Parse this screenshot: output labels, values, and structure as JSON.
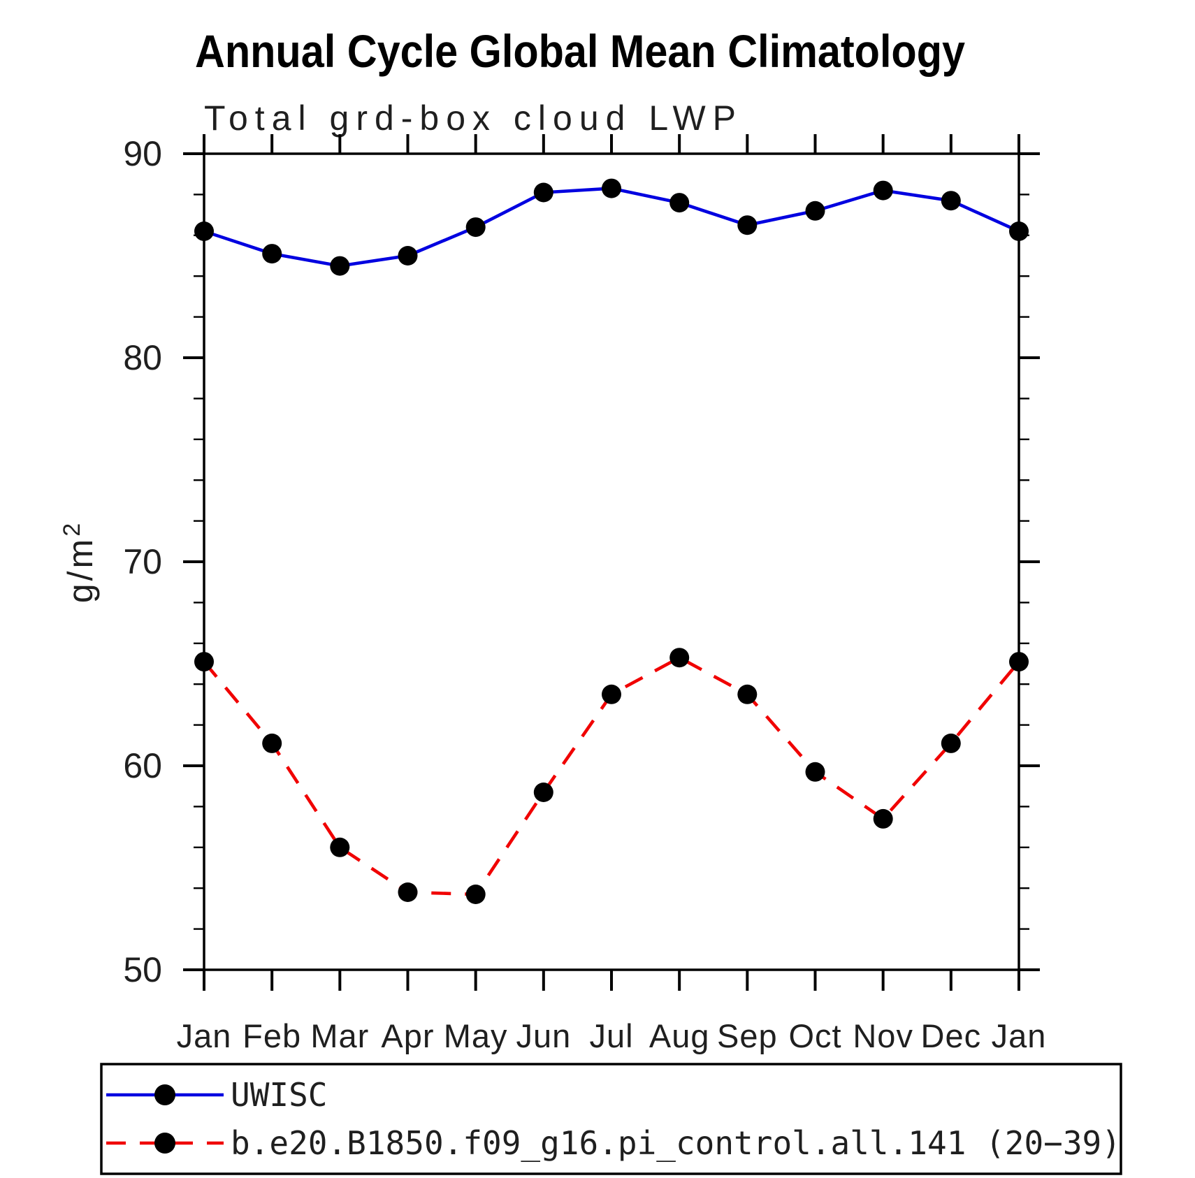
{
  "chart_data": {
    "type": "line",
    "title": "Annual Cycle Global Mean Climatology",
    "subtitle": "Total grd-box cloud LWP",
    "ylabel": "g/m²",
    "ylabel_base": "g/m",
    "ylabel_sup": "2",
    "x_categories": [
      "Jan",
      "Feb",
      "Mar",
      "Apr",
      "May",
      "Jun",
      "Jul",
      "Aug",
      "Sep",
      "Oct",
      "Nov",
      "Dec",
      "Jan"
    ],
    "y_ticks": [
      90,
      80,
      70,
      60,
      50
    ],
    "y_minor_tick_step": 2,
    "ylim": [
      50,
      90
    ],
    "grid": "off",
    "legend_position": "bottom-left-box",
    "series": [
      {
        "name": "UWISC",
        "color": "#0000e0",
        "line_style": "solid",
        "marker": "filled-black-circle",
        "values": [
          86.2,
          85.1,
          84.5,
          85.0,
          86.4,
          88.1,
          88.3,
          87.6,
          86.5,
          87.2,
          88.2,
          87.7,
          86.2
        ]
      },
      {
        "name": "b.e20.B1850.f09_g16.pi_control.all.141 (20−39)",
        "color": "#f00000",
        "line_style": "dashed",
        "marker": "filled-black-circle",
        "values": [
          65.1,
          61.1,
          56.0,
          53.8,
          53.7,
          58.7,
          63.5,
          65.3,
          63.5,
          59.7,
          57.4,
          61.1,
          65.1
        ]
      }
    ]
  }
}
